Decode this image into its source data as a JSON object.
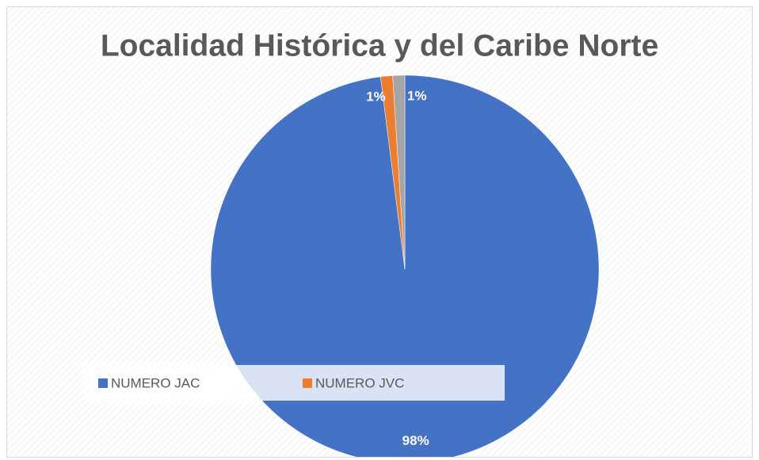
{
  "chart_data": {
    "type": "pie",
    "title": "Localidad Histórica y del Caribe Norte",
    "categories": [
      "NUMERO JAC",
      "NUMERO JVC",
      null
    ],
    "values": [
      98,
      1,
      1
    ],
    "value_labels": [
      "98%",
      "1%",
      "1%"
    ],
    "colors": [
      "#4472c4",
      "#ed7d31",
      "#a5a5a5"
    ],
    "legend": "bottom"
  }
}
